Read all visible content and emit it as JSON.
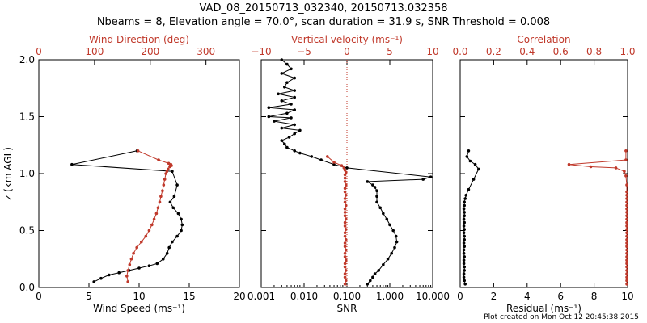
{
  "title": "VAD_08_20150713_032340, 20150713.032358",
  "subtitle": "Nbeams = 8, Elevation angle = 70.0°, scan duration = 31.9 s, SNR Threshold = 0.008",
  "footer": "Plot created on Mon Oct 12 20:45:38 2015",
  "colors": {
    "primary": "#000000",
    "secondary": "#c0392b"
  },
  "chart_data": [
    {
      "type": "line",
      "ylabel": "z (km AGL)",
      "ylim": [
        0,
        2
      ],
      "yticks": [
        "0.0",
        "0.5",
        "1.0",
        "1.5",
        "2.0"
      ],
      "bottom_axis": {
        "label": "Wind Speed (ms⁻¹)",
        "xlim": [
          0,
          20
        ],
        "ticks": [
          "0",
          "5",
          "10",
          "15",
          "20"
        ]
      },
      "top_axis": {
        "label": "Wind Direction (deg)",
        "xlim": [
          0,
          360
        ],
        "ticks": [
          "0",
          "100",
          "200",
          "300"
        ]
      },
      "series": [
        {
          "axis": "bottom",
          "color": "#000000",
          "x": [
            5.5,
            6.2,
            7.0,
            8.0,
            9.0,
            10.0,
            11.0,
            11.8,
            12.4,
            12.8,
            13.0,
            13.3,
            13.8,
            14.2,
            14.3,
            14.2,
            13.9,
            13.4,
            13.1,
            13.5,
            13.8,
            13.3,
            3.3,
            9.8
          ],
          "y": [
            0.05,
            0.08,
            0.11,
            0.13,
            0.15,
            0.17,
            0.19,
            0.21,
            0.25,
            0.3,
            0.35,
            0.4,
            0.45,
            0.5,
            0.55,
            0.6,
            0.65,
            0.7,
            0.75,
            0.8,
            0.9,
            1.02,
            1.08,
            1.2
          ]
        },
        {
          "axis": "top",
          "color": "#c0392b",
          "x": [
            160,
            158,
            160,
            163,
            166,
            170,
            176,
            184,
            192,
            198,
            203,
            207,
            211,
            214,
            217,
            219,
            222,
            224,
            226,
            228,
            230,
            232,
            235,
            236,
            237,
            238,
            233,
            215,
            178
          ],
          "y": [
            0.05,
            0.1,
            0.15,
            0.2,
            0.25,
            0.3,
            0.35,
            0.4,
            0.45,
            0.5,
            0.55,
            0.6,
            0.65,
            0.7,
            0.75,
            0.8,
            0.85,
            0.9,
            0.95,
            1.0,
            1.02,
            1.04,
            1.06,
            1.07,
            1.08,
            1.07,
            1.09,
            1.12,
            1.2
          ]
        }
      ]
    },
    {
      "type": "line",
      "bottom_axis": {
        "label": "SNR",
        "scale": "log",
        "xlim": [
          0.001,
          10
        ],
        "ticks": [
          "0.001",
          "0.010",
          "0.100",
          "1.000",
          "10.000"
        ]
      },
      "top_axis": {
        "label": "Vertical velocity (ms⁻¹)",
        "xlim": [
          -10,
          10
        ],
        "ticks": [
          "−10",
          "−5",
          "0",
          "5",
          "10"
        ]
      },
      "zero_line": true,
      "series": [
        {
          "axis": "bottom",
          "color": "#000000",
          "x": [
            0.3,
            0.35,
            0.4,
            0.45,
            0.55,
            0.7,
            0.9,
            1.1,
            1.3,
            1.45,
            1.4,
            1.2,
            1.0,
            0.85,
            0.7,
            0.6,
            0.5,
            0.5,
            0.5,
            0.45,
            0.4,
            0.3,
            6.0,
            9.0,
            0.1,
            0.05,
            0.025,
            0.015,
            0.008,
            0.006,
            0.004,
            0.0035,
            0.003,
            0.0045,
            0.006,
            0.008,
            0.003,
            0.006,
            0.002,
            0.005,
            0.0015,
            0.004,
            0.006,
            0.0015,
            0.005,
            0.003,
            0.006,
            0.0025,
            0.006,
            0.0035,
            0.004,
            0.006,
            0.003,
            0.005,
            0.004,
            0.003
          ],
          "y": [
            0.03,
            0.06,
            0.09,
            0.12,
            0.15,
            0.2,
            0.25,
            0.3,
            0.35,
            0.4,
            0.45,
            0.5,
            0.55,
            0.6,
            0.65,
            0.7,
            0.75,
            0.8,
            0.85,
            0.88,
            0.9,
            0.93,
            0.95,
            0.97,
            1.05,
            1.08,
            1.12,
            1.15,
            1.18,
            1.2,
            1.23,
            1.26,
            1.29,
            1.32,
            1.35,
            1.38,
            1.4,
            1.43,
            1.46,
            1.49,
            1.5,
            1.53,
            1.56,
            1.58,
            1.61,
            1.64,
            1.67,
            1.7,
            1.73,
            1.76,
            1.8,
            1.84,
            1.88,
            1.92,
            1.96,
            2.0
          ]
        },
        {
          "axis": "bottom",
          "color": "#c0392b",
          "x": [
            0.09,
            0.095,
            0.09,
            0.09,
            0.095,
            0.09,
            0.09,
            0.095,
            0.09,
            0.09,
            0.095,
            0.09,
            0.09,
            0.095,
            0.09,
            0.09,
            0.095,
            0.09,
            0.09,
            0.095,
            0.09,
            0.09,
            0.09,
            0.095,
            0.09,
            0.09,
            0.095,
            0.09,
            0.09,
            0.095,
            0.09,
            0.09,
            0.09,
            0.095,
            0.09,
            0.085,
            0.075,
            0.05,
            0.035
          ],
          "y": [
            0.03,
            0.06,
            0.09,
            0.12,
            0.15,
            0.18,
            0.21,
            0.24,
            0.27,
            0.3,
            0.33,
            0.36,
            0.39,
            0.42,
            0.45,
            0.48,
            0.51,
            0.54,
            0.57,
            0.6,
            0.63,
            0.66,
            0.69,
            0.72,
            0.75,
            0.78,
            0.81,
            0.84,
            0.87,
            0.9,
            0.93,
            0.96,
            0.99,
            1.01,
            1.03,
            1.05,
            1.07,
            1.1,
            1.15
          ]
        }
      ]
    },
    {
      "type": "line",
      "bottom_axis": {
        "label": "Residual (ms⁻¹)",
        "xlim": [
          0,
          10
        ],
        "ticks": [
          "0",
          "2",
          "4",
          "6",
          "8",
          "10"
        ]
      },
      "top_axis": {
        "label": "Correlation",
        "xlim": [
          0,
          1
        ],
        "ticks": [
          "0.0",
          "0.2",
          "0.4",
          "0.6",
          "0.8",
          "1.0"
        ]
      },
      "series": [
        {
          "axis": "bottom",
          "color": "#000000",
          "x": [
            0.3,
            0.25,
            0.22,
            0.22,
            0.25,
            0.25,
            0.22,
            0.22,
            0.25,
            0.22,
            0.22,
            0.25,
            0.22,
            0.25,
            0.25,
            0.22,
            0.25,
            0.22,
            0.25,
            0.22,
            0.25,
            0.25,
            0.22,
            0.25,
            0.25,
            0.3,
            0.35,
            0.5,
            0.8,
            1.1,
            0.9,
            0.6,
            0.4,
            0.5
          ],
          "y": [
            0.03,
            0.06,
            0.09,
            0.12,
            0.15,
            0.18,
            0.21,
            0.24,
            0.27,
            0.3,
            0.33,
            0.36,
            0.39,
            0.42,
            0.45,
            0.48,
            0.51,
            0.54,
            0.57,
            0.6,
            0.63,
            0.66,
            0.69,
            0.72,
            0.75,
            0.78,
            0.81,
            0.86,
            0.95,
            1.04,
            1.08,
            1.11,
            1.15,
            1.2
          ]
        },
        {
          "axis": "top",
          "color": "#c0392b",
          "x": [
            0.995,
            0.995,
            0.995,
            0.995,
            0.995,
            0.995,
            0.995,
            0.995,
            0.995,
            0.995,
            0.995,
            0.995,
            0.995,
            0.995,
            0.995,
            0.995,
            0.995,
            0.995,
            0.995,
            0.995,
            0.995,
            0.995,
            0.995,
            0.995,
            0.995,
            0.995,
            0.995,
            0.995,
            0.995,
            0.99,
            0.98,
            0.93,
            0.78,
            0.65,
            0.99,
            0.99
          ],
          "y": [
            0.03,
            0.06,
            0.09,
            0.12,
            0.15,
            0.18,
            0.21,
            0.24,
            0.27,
            0.3,
            0.33,
            0.36,
            0.39,
            0.42,
            0.45,
            0.48,
            0.51,
            0.54,
            0.57,
            0.6,
            0.63,
            0.66,
            0.69,
            0.72,
            0.75,
            0.78,
            0.81,
            0.84,
            0.9,
            0.98,
            1.02,
            1.05,
            1.06,
            1.08,
            1.12,
            1.2
          ]
        }
      ]
    }
  ]
}
